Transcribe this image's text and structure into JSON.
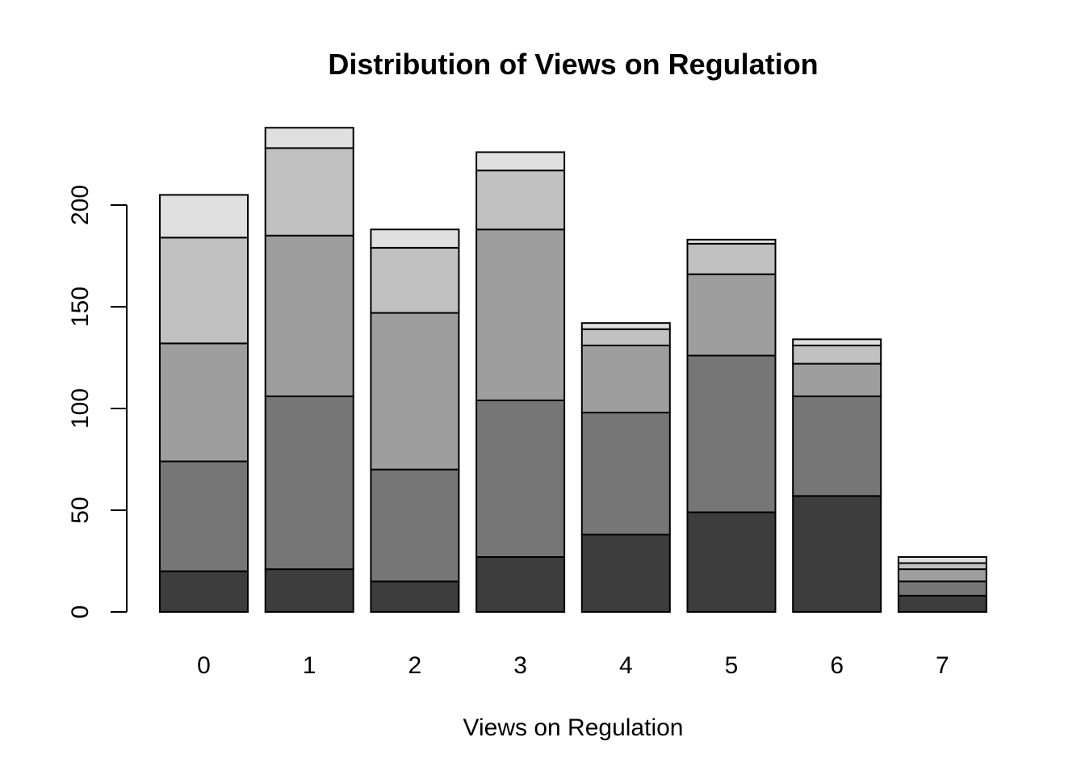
{
  "chart_data": {
    "type": "bar",
    "stacked": true,
    "title": "Distribution of Views on Regulation",
    "xlabel": "Views on Regulation",
    "ylabel": "",
    "categories": [
      "0",
      "1",
      "2",
      "3",
      "4",
      "5",
      "6",
      "7"
    ],
    "yticks": [
      0,
      50,
      100,
      150,
      200
    ],
    "ylim": [
      0,
      240
    ],
    "grid": false,
    "legend": "none",
    "series": [
      {
        "color": "#3d3d3d",
        "values": [
          20,
          21,
          15,
          27,
          38,
          49,
          57,
          8
        ]
      },
      {
        "color": "#767676",
        "values": [
          54,
          85,
          55,
          77,
          60,
          77,
          49,
          7
        ]
      },
      {
        "color": "#9e9e9e",
        "values": [
          58,
          79,
          77,
          84,
          33,
          40,
          16,
          6
        ]
      },
      {
        "color": "#c1c1c1",
        "values": [
          52,
          43,
          32,
          29,
          8,
          15,
          9,
          3
        ]
      },
      {
        "color": "#e0e0e0",
        "values": [
          21,
          10,
          9,
          9,
          3,
          2,
          3,
          3
        ]
      }
    ]
  }
}
